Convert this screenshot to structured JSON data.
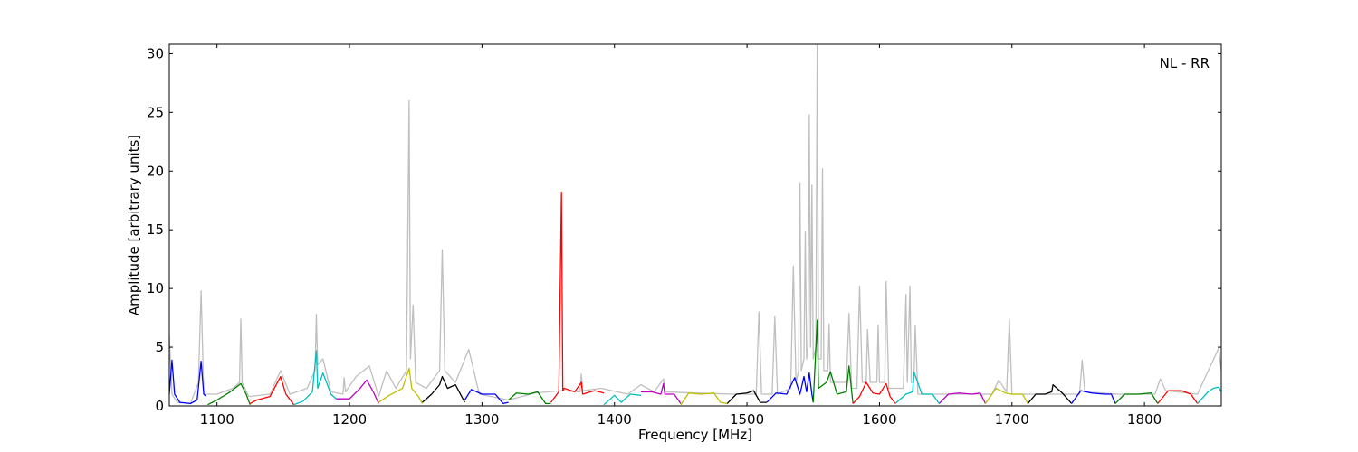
{
  "chart_data": {
    "type": "line",
    "x_label": "Frequency [MHz]",
    "y_label": "Amplitude [arbitrary units]",
    "annotation": "NL - RR",
    "xlim": [
      1064,
      1858
    ],
    "ylim": [
      0,
      30.8
    ],
    "xticks": [
      1100,
      1200,
      1300,
      1400,
      1500,
      1600,
      1700,
      1800
    ],
    "yticks": [
      0,
      5,
      10,
      15,
      20,
      25,
      30
    ],
    "series": [
      {
        "color": "#bfbfbf",
        "x": [
          1064,
          1066,
          1070,
          1080,
          1086,
          1088,
          1090,
          1100,
          1112,
          1117,
          1118,
          1119,
          1124,
          1140,
          1148,
          1155,
          1168,
          1174,
          1175,
          1176,
          1180,
          1186,
          1195,
          1196,
          1197,
          1205,
          1215,
          1222,
          1228,
          1235,
          1243,
          1245,
          1246,
          1248,
          1250,
          1258,
          1268,
          1270,
          1272,
          1280,
          1290,
          1298,
          1320,
          1340,
          1360,
          1374,
          1375,
          1376,
          1390,
          1410,
          1420,
          1430,
          1437,
          1438,
          1460,
          1490,
          1507,
          1509,
          1511,
          1519,
          1521,
          1523,
          1533,
          1535,
          1537,
          1539,
          1540,
          1541,
          1543,
          1544,
          1545,
          1546,
          1547,
          1548,
          1549,
          1550,
          1552,
          1553,
          1554,
          1556,
          1557,
          1558,
          1561,
          1562,
          1563,
          1575,
          1577,
          1579,
          1583,
          1585,
          1587,
          1590,
          1591,
          1593,
          1598,
          1599,
          1600,
          1604,
          1605,
          1607,
          1618,
          1620,
          1621,
          1623,
          1624,
          1626,
          1627,
          1629,
          1650,
          1685,
          1690,
          1696,
          1698,
          1700,
          1720,
          1751,
          1753,
          1755,
          1780,
          1808,
          1812,
          1816,
          1840,
          1856,
          1858
        ],
        "values": [
          6,
          1,
          0.3,
          0.2,
          2,
          9.8,
          1,
          1,
          1.5,
          2,
          7.4,
          2,
          0.8,
          1,
          3,
          1,
          1.5,
          3,
          7.8,
          3.5,
          4,
          1.2,
          1,
          2.4,
          1.2,
          2.5,
          3.4,
          0.8,
          3,
          1.5,
          3,
          26,
          4,
          8.6,
          2,
          1.5,
          3,
          13.3,
          3,
          2,
          4.8,
          1,
          0.5,
          1.1,
          1.3,
          1.2,
          2.7,
          1.3,
          1.5,
          1,
          1.8,
          1.2,
          2.3,
          1.2,
          1.1,
          1,
          1,
          8,
          1,
          1,
          7.6,
          1,
          1.5,
          11.9,
          2,
          3,
          19,
          3,
          4,
          14.8,
          4,
          5,
          24.8,
          5,
          18.8,
          4,
          5,
          30.8,
          4,
          4,
          20.2,
          3,
          3,
          7,
          2,
          2,
          7.9,
          1.5,
          1.5,
          10.2,
          2,
          2,
          6.5,
          2,
          2,
          6.9,
          2,
          2,
          10.6,
          1.5,
          1.5,
          9.5,
          2,
          10.2,
          2,
          2,
          6.8,
          1,
          1,
          1,
          2.2,
          1.2,
          7.4,
          1,
          1,
          1,
          3.9,
          1.2,
          1,
          1,
          2.3,
          1.3,
          1,
          4.9,
          3
        ]
      },
      {
        "color": "#0000ff",
        "x": [
          1064,
          1066,
          1068,
          1072,
          1080,
          1085,
          1088,
          1090,
          1092
        ],
        "values": [
          1,
          3.9,
          1,
          0.3,
          0.2,
          0.5,
          3.8,
          1,
          0.8
        ]
      },
      {
        "color": "#008000",
        "x": [
          1093,
          1100,
          1110,
          1118,
          1122,
          1125
        ],
        "values": [
          0.1,
          0.5,
          1.2,
          1.9,
          1,
          0.1
        ]
      },
      {
        "color": "#ff0000",
        "x": [
          1125,
          1130,
          1140,
          1148,
          1152,
          1158
        ],
        "values": [
          0.2,
          0.5,
          0.8,
          2.5,
          1,
          0.1
        ]
      },
      {
        "color": "#00bfbf",
        "x": [
          1158,
          1165,
          1172,
          1175,
          1176,
          1180,
          1186,
          1190
        ],
        "values": [
          0.1,
          0.4,
          1.2,
          4.7,
          1.5,
          2.8,
          1,
          0.6
        ]
      },
      {
        "color": "#bf00bf",
        "x": [
          1190,
          1200,
          1208,
          1213,
          1218,
          1222
        ],
        "values": [
          0.6,
          0.6,
          1.5,
          2.2,
          1.2,
          0.2
        ]
      },
      {
        "color": "#bfbf00",
        "x": [
          1222,
          1230,
          1240,
          1245,
          1247,
          1252,
          1255
        ],
        "values": [
          0.3,
          0.9,
          1.5,
          3.2,
          1.5,
          0.8,
          0.2
        ]
      },
      {
        "color": "#000000",
        "x": [
          1255,
          1262,
          1268,
          1270,
          1274,
          1280,
          1287
        ],
        "values": [
          0.3,
          1,
          1.8,
          2.5,
          1.5,
          1.8,
          0.3
        ]
      },
      {
        "color": "#0000ff",
        "x": [
          1287,
          1292,
          1300,
          1310,
          1316,
          1320
        ],
        "values": [
          0.5,
          1.4,
          1,
          1,
          0.2,
          0.3
        ]
      },
      {
        "color": "#008000",
        "x": [
          1320,
          1326,
          1335,
          1342,
          1348,
          1352
        ],
        "values": [
          0.5,
          1.1,
          1,
          1.2,
          0.2,
          0.2
        ]
      },
      {
        "color": "#ff0000",
        "x": [
          1352,
          1358,
          1360,
          1361,
          1362,
          1370,
          1375,
          1376,
          1385,
          1392
        ],
        "values": [
          0.3,
          1.2,
          18.2,
          1.3,
          1.5,
          1.2,
          2,
          1,
          1.3,
          1.1
        ]
      },
      {
        "color": "#00bfbf",
        "x": [
          1392,
          1400,
          1405,
          1412,
          1420
        ],
        "values": [
          0.1,
          0.9,
          0.3,
          1,
          0.9
        ]
      },
      {
        "color": "#bf00bf",
        "x": [
          1420,
          1428,
          1435,
          1437,
          1438,
          1445,
          1450
        ],
        "values": [
          1.2,
          1.2,
          1,
          1.9,
          1,
          1,
          0.2
        ]
      },
      {
        "color": "#bfbf00",
        "x": [
          1450,
          1456,
          1465,
          1475,
          1480,
          1485
        ],
        "values": [
          0.1,
          1.1,
          1,
          1.1,
          0.3,
          0.2
        ]
      },
      {
        "color": "#000000",
        "x": [
          1485,
          1492,
          1500,
          1505,
          1510,
          1515
        ],
        "values": [
          0.2,
          1,
          1.1,
          1.3,
          0.3,
          0.3
        ]
      },
      {
        "color": "#0000ff",
        "x": [
          1515,
          1522,
          1530,
          1536,
          1540,
          1543,
          1545,
          1547,
          1549,
          1550
        ],
        "values": [
          0.3,
          1.1,
          1,
          2.4,
          1,
          2.5,
          1.2,
          2.8,
          1,
          0.3
        ]
      },
      {
        "color": "#008000",
        "x": [
          1550,
          1553,
          1554,
          1560,
          1563,
          1568,
          1575,
          1577,
          1580
        ],
        "values": [
          0.3,
          7.3,
          1.5,
          2,
          2.9,
          1,
          1.2,
          3.4,
          0.2
        ]
      },
      {
        "color": "#ff0000",
        "x": [
          1580,
          1585,
          1590,
          1595,
          1600,
          1605,
          1608,
          1612
        ],
        "values": [
          0.2,
          0.8,
          2,
          1.1,
          1,
          1.9,
          0.8,
          0.2
        ]
      },
      {
        "color": "#00bfbf",
        "x": [
          1612,
          1620,
          1625,
          1626,
          1632,
          1640,
          1645
        ],
        "values": [
          0.2,
          1,
          1.2,
          2.9,
          1,
          1,
          0.2
        ]
      },
      {
        "color": "#bf00bf",
        "x": [
          1645,
          1652,
          1660,
          1670,
          1676,
          1680
        ],
        "values": [
          0.2,
          1,
          1.1,
          1,
          1.1,
          0.2
        ]
      },
      {
        "color": "#bfbf00",
        "x": [
          1680,
          1688,
          1695,
          1700,
          1708,
          1712
        ],
        "values": [
          0.2,
          1.5,
          1.1,
          1,
          1,
          0.2
        ]
      },
      {
        "color": "#000000",
        "x": [
          1712,
          1718,
          1725,
          1730,
          1731,
          1738,
          1745
        ],
        "values": [
          0.2,
          1,
          1,
          1.2,
          1.8,
          1.1,
          0.2
        ]
      },
      {
        "color": "#0000ff",
        "x": [
          1745,
          1752,
          1760,
          1770,
          1775,
          1778
        ],
        "values": [
          0.2,
          1.3,
          1.1,
          1,
          1,
          0.2
        ]
      },
      {
        "color": "#008000",
        "x": [
          1778,
          1785,
          1795,
          1805,
          1810
        ],
        "values": [
          0.2,
          1,
          1,
          1.1,
          0.2
        ]
      },
      {
        "color": "#ff0000",
        "x": [
          1810,
          1818,
          1828,
          1835,
          1840
        ],
        "values": [
          0.2,
          1.3,
          1.3,
          1,
          0.2
        ]
      },
      {
        "color": "#00bfbf",
        "x": [
          1840,
          1848,
          1852,
          1856,
          1858
        ],
        "values": [
          0.2,
          1.2,
          1.5,
          1.6,
          1.2
        ]
      }
    ]
  }
}
